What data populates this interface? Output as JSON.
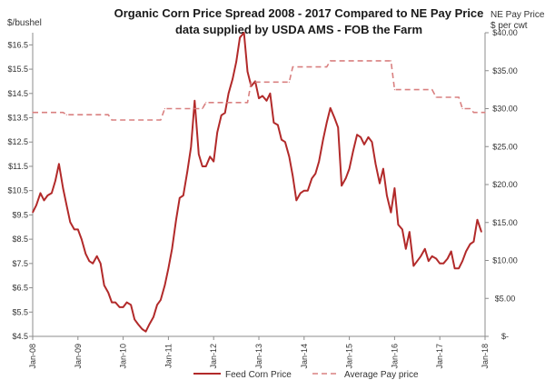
{
  "chart_data": {
    "type": "line",
    "title": "Organic Corn Price Spread 2008 - 2017 Compared to NE Pay Price",
    "subtitle": "data supplied by USDA AMS - FOB the Farm",
    "ylabel": "$/bushel",
    "y2label_line1": "NE Pay Price",
    "y2label_line2": "$ per cwt",
    "ylim": [
      4.5,
      17.0
    ],
    "y_ticks": [
      "$16.5",
      "$15.5",
      "$14.5",
      "$13.5",
      "$12.5",
      "$11.5",
      "$10.5",
      "$9.5",
      "$8.5",
      "$7.5",
      "$6.5",
      "$5.5",
      "$4.5"
    ],
    "y2lim": [
      0,
      40
    ],
    "y2_ticks": [
      "$40.00",
      "$35.00",
      "$30.00",
      "$25.00",
      "$20.00",
      "$15.00",
      "$10.00",
      "$5.00",
      "$-"
    ],
    "x_ticks": [
      "Jan-08",
      "Jan-09",
      "Jan-10",
      "Jan-11",
      "Jan-12",
      "Jan-13",
      "Jan-14",
      "Jan-15",
      "Jan-16",
      "Jan-17",
      "Jan-18"
    ],
    "xlim": [
      2008.0,
      2018.0
    ],
    "grid": false,
    "legend_position": "bottom",
    "colors": {
      "feed": "#b22a2a",
      "pay": "#d98080"
    },
    "series": [
      {
        "name": "Feed Corn Price",
        "axis": "left",
        "style": "solid",
        "x": [
          2008.0,
          2008.08,
          2008.17,
          2008.25,
          2008.33,
          2008.42,
          2008.5,
          2008.58,
          2008.67,
          2008.75,
          2008.83,
          2008.92,
          2009.0,
          2009.08,
          2009.17,
          2009.25,
          2009.33,
          2009.42,
          2009.5,
          2009.58,
          2009.67,
          2009.75,
          2009.83,
          2009.92,
          2010.0,
          2010.08,
          2010.17,
          2010.25,
          2010.33,
          2010.42,
          2010.5,
          2010.58,
          2010.67,
          2010.75,
          2010.83,
          2010.92,
          2011.0,
          2011.08,
          2011.17,
          2011.25,
          2011.33,
          2011.42,
          2011.5,
          2011.58,
          2011.67,
          2011.75,
          2011.83,
          2011.92,
          2012.0,
          2012.08,
          2012.17,
          2012.25,
          2012.33,
          2012.42,
          2012.5,
          2012.58,
          2012.67,
          2012.75,
          2012.83,
          2012.92,
          2013.0,
          2013.08,
          2013.17,
          2013.25,
          2013.33,
          2013.42,
          2013.5,
          2013.58,
          2013.67,
          2013.75,
          2013.83,
          2013.92,
          2014.0,
          2014.08,
          2014.17,
          2014.25,
          2014.33,
          2014.42,
          2014.5,
          2014.58,
          2014.67,
          2014.75,
          2014.83,
          2014.92,
          2015.0,
          2015.08,
          2015.17,
          2015.25,
          2015.33,
          2015.42,
          2015.5,
          2015.58,
          2015.67,
          2015.75,
          2015.83,
          2015.92,
          2016.0,
          2016.08,
          2016.17,
          2016.25,
          2016.33,
          2016.42,
          2016.5,
          2016.58,
          2016.67,
          2016.75,
          2016.83,
          2016.92,
          2017.0,
          2017.08,
          2017.17,
          2017.25,
          2017.33,
          2017.42,
          2017.5,
          2017.58,
          2017.67,
          2017.75,
          2017.83,
          2017.92
        ],
        "values": [
          9.6,
          9.9,
          10.4,
          10.1,
          10.3,
          10.4,
          10.9,
          11.6,
          10.6,
          9.9,
          9.2,
          8.9,
          8.9,
          8.5,
          7.9,
          7.6,
          7.5,
          7.8,
          7.5,
          6.6,
          6.3,
          5.9,
          5.9,
          5.7,
          5.7,
          5.9,
          5.8,
          5.2,
          5.0,
          4.8,
          4.7,
          5.0,
          5.3,
          5.8,
          6.0,
          6.6,
          7.3,
          8.1,
          9.3,
          10.2,
          10.3,
          11.3,
          12.3,
          14.2,
          12.0,
          11.5,
          11.5,
          11.9,
          11.7,
          12.9,
          13.6,
          13.7,
          14.5,
          15.1,
          15.8,
          16.8,
          17.0,
          15.4,
          14.8,
          15.0,
          14.3,
          14.4,
          14.2,
          14.5,
          13.3,
          13.2,
          12.6,
          12.5,
          11.9,
          11.1,
          10.1,
          10.4,
          10.5,
          10.5,
          11.0,
          11.2,
          11.7,
          12.6,
          13.3,
          13.9,
          13.5,
          13.1,
          10.7,
          11.0,
          11.4,
          12.1,
          12.8,
          12.7,
          12.4,
          12.7,
          12.5,
          11.6,
          10.8,
          11.4,
          10.3,
          9.6,
          10.6,
          9.1,
          8.9,
          8.1,
          8.8,
          7.4,
          7.6,
          7.8,
          8.1,
          7.6,
          7.8,
          7.7,
          7.5,
          7.5,
          7.7,
          8.0,
          7.3,
          7.3,
          7.6,
          8.0,
          8.3,
          8.4,
          9.3,
          8.8
        ]
      },
      {
        "name": "Average Pay price",
        "axis": "right",
        "style": "dashed",
        "x": [
          2008.0,
          2008.67,
          2008.75,
          2009.67,
          2009.75,
          2010.83,
          2010.92,
          2011.75,
          2011.83,
          2012.75,
          2012.83,
          2013.67,
          2013.75,
          2014.5,
          2014.58,
          2015.92,
          2016.0,
          2016.83,
          2016.92,
          2017.42,
          2017.5,
          2017.67,
          2017.75,
          2018.0
        ],
        "values": [
          29.5,
          29.5,
          29.2,
          29.2,
          28.5,
          28.5,
          30.0,
          30.0,
          30.8,
          30.8,
          33.5,
          33.5,
          35.5,
          35.5,
          36.3,
          36.3,
          32.5,
          32.5,
          31.5,
          31.5,
          30.0,
          30.0,
          29.5,
          29.5
        ]
      }
    ]
  }
}
